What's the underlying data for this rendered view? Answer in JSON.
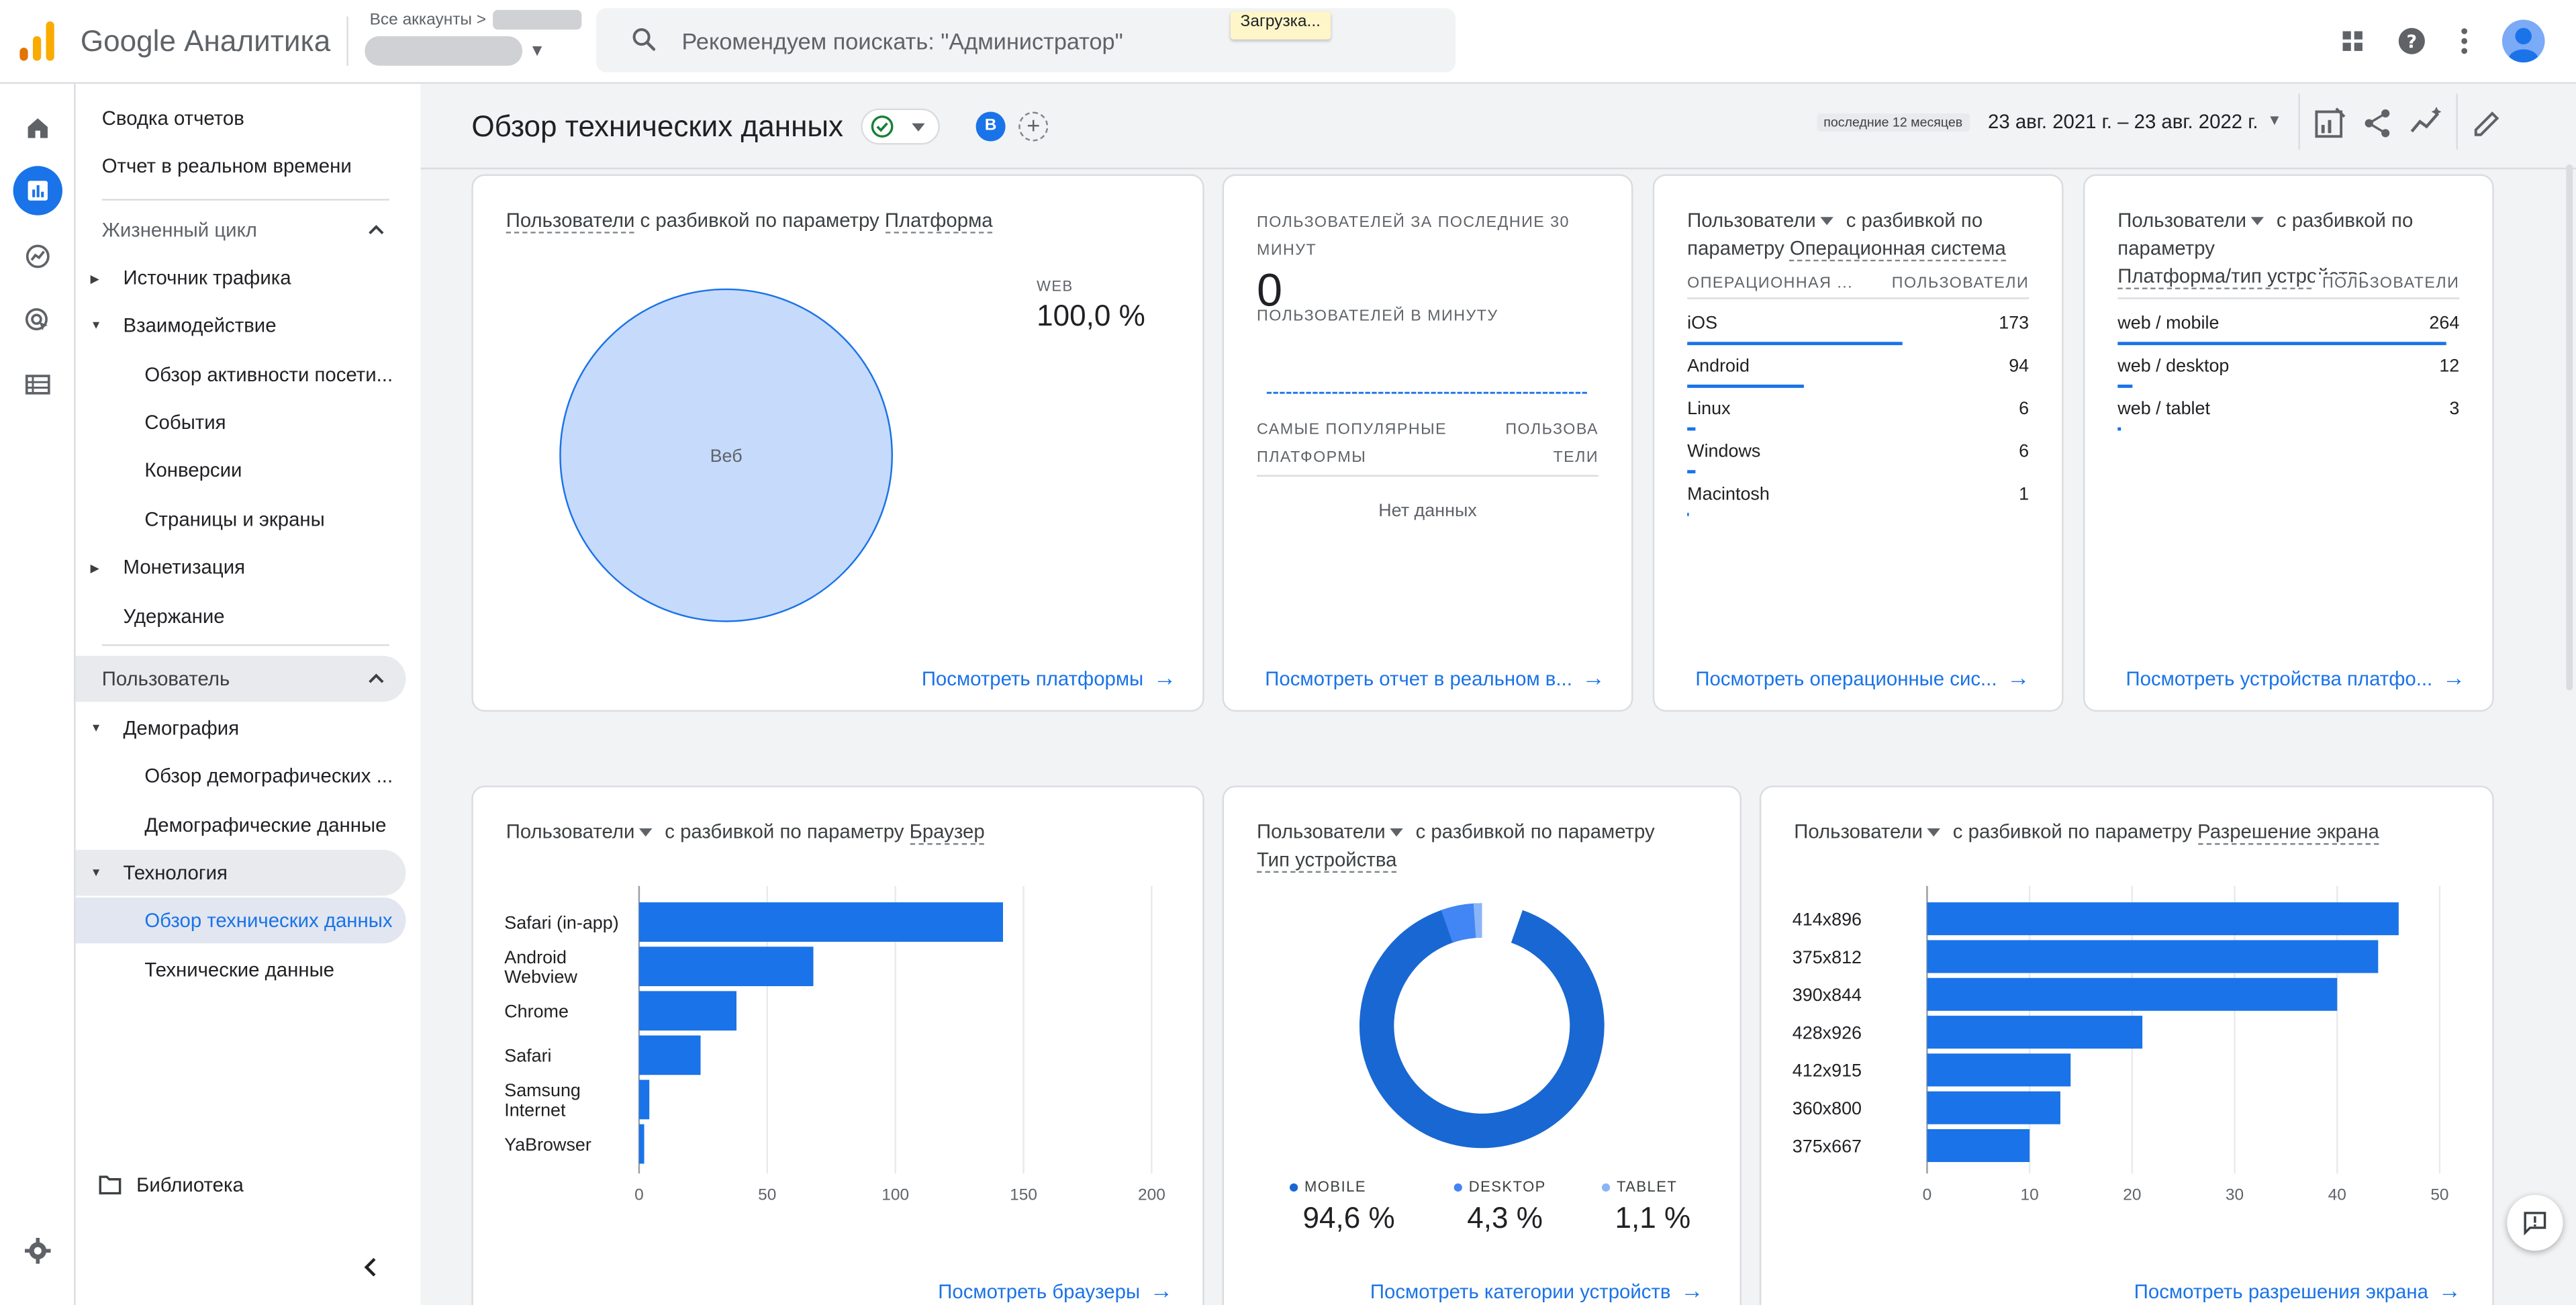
{
  "app": {
    "brand": "Google Аналитика",
    "accounts_crumb": "Все аккаунты >",
    "search_placeholder": "Рекомендуем поискать: \"Администратор\"",
    "loading_chip": "Загрузка..."
  },
  "nav": {
    "reports_snapshot": "Сводка отчетов",
    "realtime": "Отчет в реальном времени",
    "lifecycle_header": "Жизненный цикл",
    "acquisition": "Источник трафика",
    "engagement": "Взаимодействие",
    "engagement_overview": "Обзор активности посети...",
    "events": "События",
    "conversions": "Конверсии",
    "pages_screens": "Страницы и экраны",
    "monetization": "Монетизация",
    "retention": "Удержание",
    "user_header": "Пользователь",
    "demographics": "Демография",
    "demographics_overview": "Обзор демографических ...",
    "demographic_details": "Демографические данные",
    "tech": "Технология",
    "tech_overview": "Обзор технических данных",
    "tech_details": "Технические данные",
    "library": "Библиотека"
  },
  "header": {
    "title": "Обзор технических данных",
    "comparison_avatar": "B",
    "date_chip": "последние 12 месяцев",
    "date_range": "23 авг. 2021 г. – 23 авг. 2022 г."
  },
  "platform_card": {
    "title_metric": "Пользователи",
    "title_mid": " с разбивкой по параметру ",
    "title_dim": "Платформа",
    "legend_name": "WEB",
    "legend_value": "100,0 %",
    "pie_label": "Веб",
    "link": "Посмотреть платформы"
  },
  "realtime_card": {
    "users_30min": "ПОЛЬЗОВАТЕЛЕЙ ЗА ПОСЛЕДНИЕ 30 МИНУТ",
    "count": "0",
    "per_minute": "ПОЛЬЗОВАТЕЛЕЙ В МИНУТУ",
    "col_platforms": "САМЫЕ ПОПУЛЯРНЫЕ ПЛАТФОРМЫ",
    "col_users": "ПОЛЬЗОВАТЕЛИ",
    "col_users_1": "ПОЛЬЗОВА",
    "col_users_2": "ТЕЛИ",
    "no_data": "Нет данных",
    "link": "Посмотреть отчет в реальном в..."
  },
  "os_card": {
    "title_metric": "Пользователи",
    "title_mid": " с разбивкой по",
    "title_line2": "параметру ",
    "title_dim": "Операционная система",
    "col_dim": "ОПЕРАЦИОННАЯ ...",
    "col_metric": "ПОЛЬЗОВАТЕЛИ",
    "rows": [
      {
        "label": "iOS",
        "value": "173",
        "fraction": 0.655
      },
      {
        "label": "Android",
        "value": "94",
        "fraction": 0.356
      },
      {
        "label": "Linux",
        "value": "6",
        "fraction": 0.023
      },
      {
        "label": "Windows",
        "value": "6",
        "fraction": 0.023
      },
      {
        "label": "Macintosh",
        "value": "1",
        "fraction": 0.004
      }
    ],
    "link": "Посмотреть операционные сис..."
  },
  "device_card": {
    "title_metric": "Пользователи",
    "title_mid": " с разбивкой по",
    "title_line2": "параметру",
    "title_dim": "Платформа/тип устройства",
    "col_metric": "ПОЛЬЗОВАТЕЛИ",
    "rows": [
      {
        "label": "web / mobile",
        "value": "264",
        "fraction": 1.0
      },
      {
        "label": "web / desktop",
        "value": "12",
        "fraction": 0.045
      },
      {
        "label": "web / tablet",
        "value": "3",
        "fraction": 0.011
      }
    ],
    "link": "Посмотреть устройства платфо..."
  },
  "browser_card": {
    "title_metric": "Пользователи",
    "title_mid": " с разбивкой по параметру ",
    "title_dim": "Браузер",
    "link": "Посмотреть браузеры"
  },
  "devcat_card": {
    "title_metric": "Пользователи",
    "title_mid": " с разбивкой по параметру",
    "title_dim": "Тип устройства",
    "link": "Посмотреть категории устройств"
  },
  "resolution_card": {
    "title_metric": "Пользователи",
    "title_mid": " с разбивкой по параметру ",
    "title_dim": "Разрешение экрана",
    "link": "Посмотреть разрешения экрана"
  },
  "colors": {
    "accent": "#1a73e8",
    "pie_fill": "#c6dafc",
    "donut_mobile": "#1967d2",
    "donut_desktop": "#4285f4",
    "donut_tablet": "#8ab4f8"
  },
  "chart_data": [
    {
      "type": "pie",
      "categories": [
        "Веб"
      ],
      "values": [
        100.0
      ]
    },
    {
      "type": "bar",
      "orientation": "horizontal",
      "categories": [
        "Safari (in-app)",
        "Android Webview",
        "Chrome",
        "Safari",
        "Samsung Internet",
        "YaBrowser"
      ],
      "values": [
        142,
        68,
        38,
        24,
        4,
        2
      ],
      "xlim": [
        0,
        200
      ],
      "xticks": [
        0,
        50,
        100,
        150,
        200
      ]
    },
    {
      "type": "pie",
      "variant": "donut",
      "categories": [
        "MOBILE",
        "DESKTOP",
        "TABLET"
      ],
      "values": [
        94.6,
        4.3,
        1.1
      ],
      "labels": [
        "94,6 %",
        "4,3 %",
        "1,1 %"
      ]
    },
    {
      "type": "bar",
      "orientation": "horizontal",
      "categories": [
        "414x896",
        "375x812",
        "390x844",
        "428x926",
        "412x915",
        "360x800",
        "375x667"
      ],
      "values": [
        46,
        44,
        40,
        21,
        14,
        13,
        10
      ],
      "xlim": [
        0,
        50
      ],
      "xticks": [
        0,
        10,
        20,
        30,
        40,
        50
      ]
    }
  ]
}
